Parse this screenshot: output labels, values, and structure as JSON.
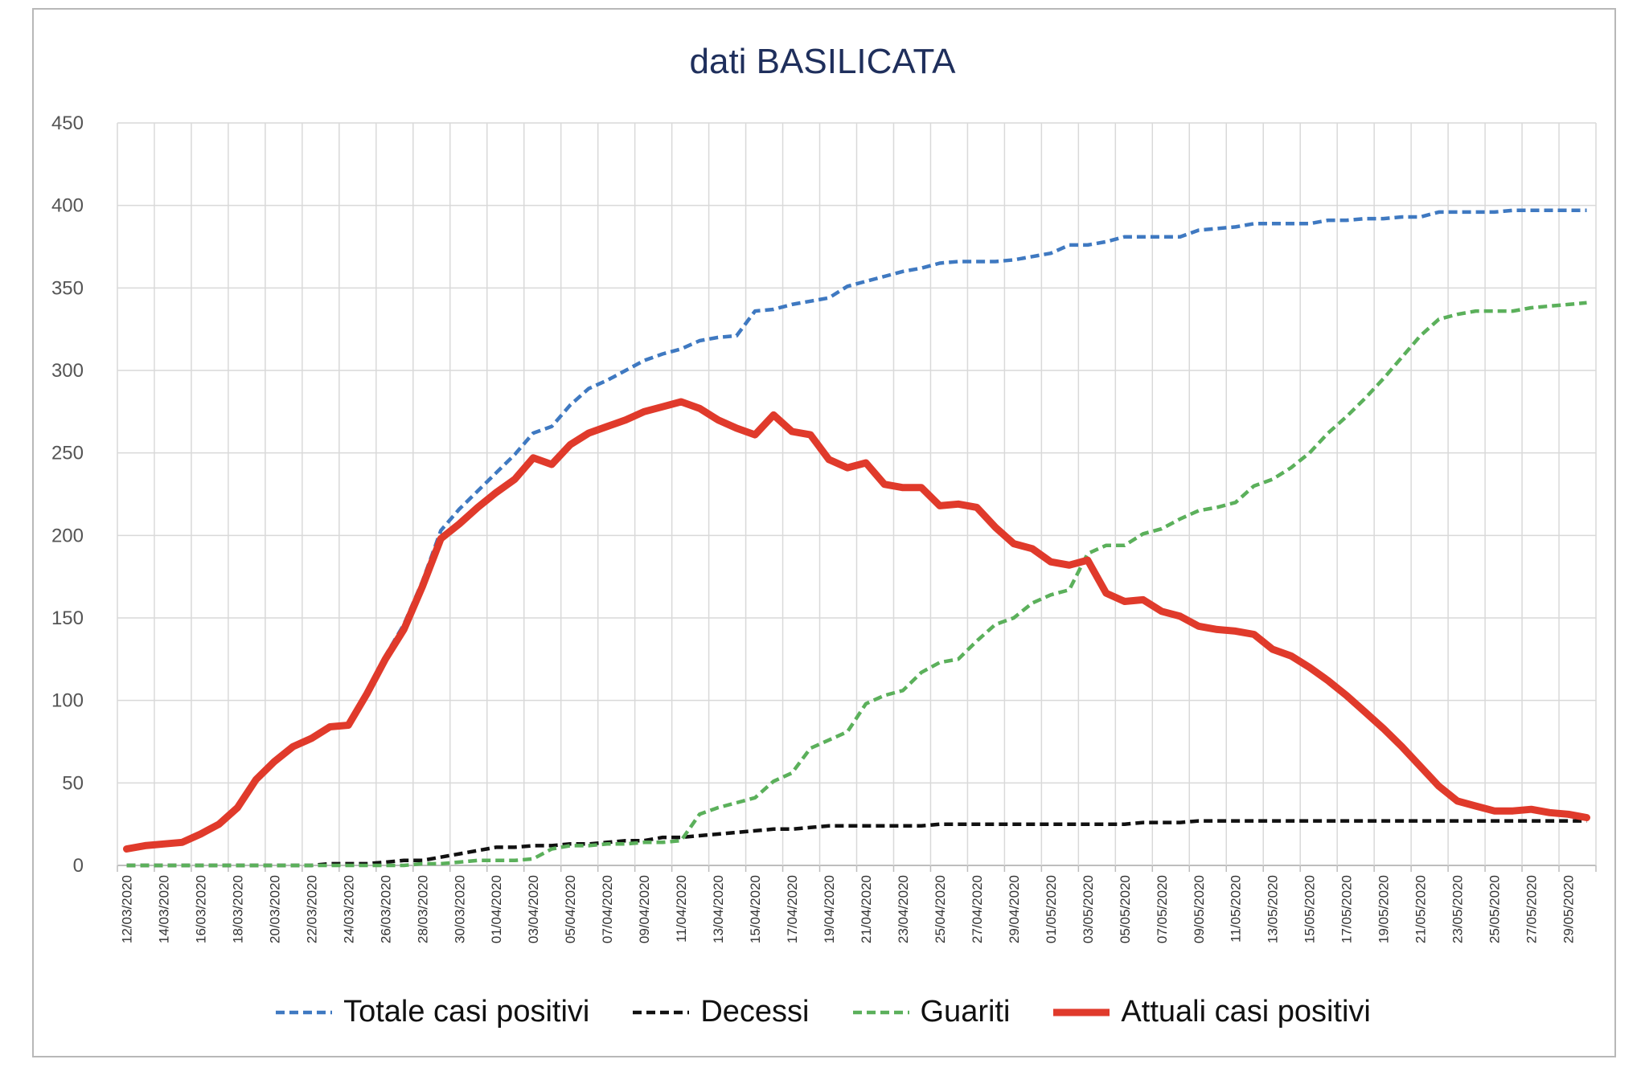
{
  "chart_data": {
    "type": "line",
    "title": "dati BASILICATA",
    "xlabel": "",
    "ylabel": "",
    "ylim": [
      0,
      450
    ],
    "yticks": [
      0,
      50,
      100,
      150,
      200,
      250,
      300,
      350,
      400,
      450
    ],
    "x": [
      "12/03/2020",
      "13/03/2020",
      "14/03/2020",
      "15/03/2020",
      "16/03/2020",
      "17/03/2020",
      "18/03/2020",
      "19/03/2020",
      "20/03/2020",
      "21/03/2020",
      "22/03/2020",
      "23/03/2020",
      "24/03/2020",
      "25/03/2020",
      "26/03/2020",
      "27/03/2020",
      "28/03/2020",
      "29/03/2020",
      "30/03/2020",
      "31/03/2020",
      "01/04/2020",
      "02/04/2020",
      "03/04/2020",
      "04/04/2020",
      "05/04/2020",
      "06/04/2020",
      "07/04/2020",
      "08/04/2020",
      "09/04/2020",
      "10/04/2020",
      "11/04/2020",
      "12/04/2020",
      "13/04/2020",
      "14/04/2020",
      "15/04/2020",
      "16/04/2020",
      "17/04/2020",
      "18/04/2020",
      "19/04/2020",
      "20/04/2020",
      "21/04/2020",
      "22/04/2020",
      "23/04/2020",
      "24/04/2020",
      "25/04/2020",
      "26/04/2020",
      "27/04/2020",
      "28/04/2020",
      "29/04/2020",
      "30/04/2020",
      "01/05/2020",
      "02/05/2020",
      "03/05/2020",
      "04/05/2020",
      "05/05/2020",
      "06/05/2020",
      "07/05/2020",
      "08/05/2020",
      "09/05/2020",
      "10/05/2020",
      "11/05/2020",
      "12/05/2020",
      "13/05/2020",
      "14/05/2020",
      "15/05/2020",
      "16/05/2020",
      "17/05/2020",
      "18/05/2020",
      "19/05/2020",
      "20/05/2020",
      "21/05/2020",
      "22/05/2020",
      "23/05/2020",
      "24/05/2020",
      "25/05/2020",
      "26/05/2020",
      "27/05/2020",
      "28/05/2020",
      "29/05/2020",
      "30/05/2020"
    ],
    "xtick_labels": [
      "12/03/2020",
      "14/03/2020",
      "16/03/2020",
      "18/03/2020",
      "20/03/2020",
      "22/03/2020",
      "24/03/2020",
      "26/03/2020",
      "28/03/2020",
      "30/03/2020",
      "01/04/2020",
      "03/04/2020",
      "05/04/2020",
      "07/04/2020",
      "09/04/2020",
      "11/04/2020",
      "13/04/2020",
      "15/04/2020",
      "17/04/2020",
      "19/04/2020",
      "21/04/2020",
      "23/04/2020",
      "25/04/2020",
      "27/04/2020",
      "29/04/2020",
      "01/05/2020",
      "03/05/2020",
      "05/05/2020",
      "07/05/2020",
      "09/05/2020",
      "11/05/2020",
      "13/05/2020",
      "15/05/2020",
      "17/05/2020",
      "19/05/2020",
      "21/05/2020",
      "23/05/2020",
      "25/05/2020",
      "27/05/2020",
      "29/05/2020"
    ],
    "grid": true,
    "legend_position": "bottom",
    "series": [
      {
        "name": "Totale casi positivi",
        "color": "#3f79c1",
        "style": "dashed",
        "values": [
          10,
          12,
          13,
          14,
          19,
          25,
          35,
          52,
          63,
          72,
          77,
          84,
          85,
          105,
          127,
          146,
          172,
          203,
          216,
          227,
          238,
          249,
          262,
          266,
          279,
          289,
          294,
          300,
          306,
          310,
          313,
          318,
          320,
          321,
          336,
          337,
          340,
          342,
          344,
          351,
          354,
          357,
          360,
          362,
          365,
          366,
          366,
          366,
          367,
          369,
          371,
          376,
          376,
          378,
          381,
          381,
          381,
          381,
          385,
          386,
          387,
          389,
          389,
          389,
          389,
          391,
          391,
          392,
          392,
          393,
          393,
          396,
          396,
          396,
          396,
          397,
          397,
          397,
          397,
          397
        ]
      },
      {
        "name": "Decessi",
        "color": "#111111",
        "style": "dashed",
        "values": [
          0,
          0,
          0,
          0,
          0,
          0,
          0,
          0,
          0,
          0,
          0,
          1,
          1,
          1,
          2,
          3,
          3,
          5,
          7,
          9,
          11,
          11,
          12,
          12,
          13,
          13,
          14,
          15,
          15,
          17,
          17,
          18,
          19,
          20,
          21,
          22,
          22,
          23,
          24,
          24,
          24,
          24,
          24,
          24,
          25,
          25,
          25,
          25,
          25,
          25,
          25,
          25,
          25,
          25,
          25,
          26,
          26,
          26,
          27,
          27,
          27,
          27,
          27,
          27,
          27,
          27,
          27,
          27,
          27,
          27,
          27,
          27,
          27,
          27,
          27,
          27,
          27,
          27,
          27,
          27
        ]
      },
      {
        "name": "Guariti",
        "color": "#5bb05b",
        "style": "dashed",
        "values": [
          0,
          0,
          0,
          0,
          0,
          0,
          0,
          0,
          0,
          0,
          0,
          0,
          0,
          0,
          0,
          0,
          1,
          1,
          2,
          3,
          3,
          3,
          4,
          10,
          12,
          12,
          13,
          13,
          14,
          14,
          15,
          31,
          35,
          38,
          41,
          51,
          56,
          71,
          76,
          81,
          98,
          103,
          106,
          117,
          123,
          125,
          136,
          146,
          150,
          159,
          164,
          167,
          189,
          194,
          194,
          201,
          204,
          210,
          215,
          217,
          220,
          230,
          234,
          241,
          250,
          262,
          272,
          283,
          295,
          308,
          321,
          331,
          334,
          336,
          336,
          336,
          338,
          339,
          340,
          341
        ]
      },
      {
        "name": "Attuali casi positivi",
        "color": "#e03a2b",
        "style": "solid",
        "values": [
          10,
          12,
          13,
          14,
          19,
          25,
          35,
          52,
          63,
          72,
          77,
          84,
          85,
          104,
          125,
          143,
          169,
          198,
          207,
          217,
          226,
          234,
          247,
          243,
          255,
          262,
          266,
          270,
          275,
          278,
          281,
          277,
          270,
          265,
          261,
          273,
          263,
          261,
          246,
          241,
          244,
          231,
          229,
          229,
          218,
          219,
          217,
          205,
          195,
          192,
          184,
          182,
          185,
          165,
          160,
          161,
          154,
          151,
          145,
          143,
          142,
          140,
          131,
          127,
          120,
          112,
          103,
          93,
          83,
          72,
          60,
          48,
          39,
          36,
          33,
          33,
          34,
          32,
          31,
          29
        ]
      }
    ]
  }
}
